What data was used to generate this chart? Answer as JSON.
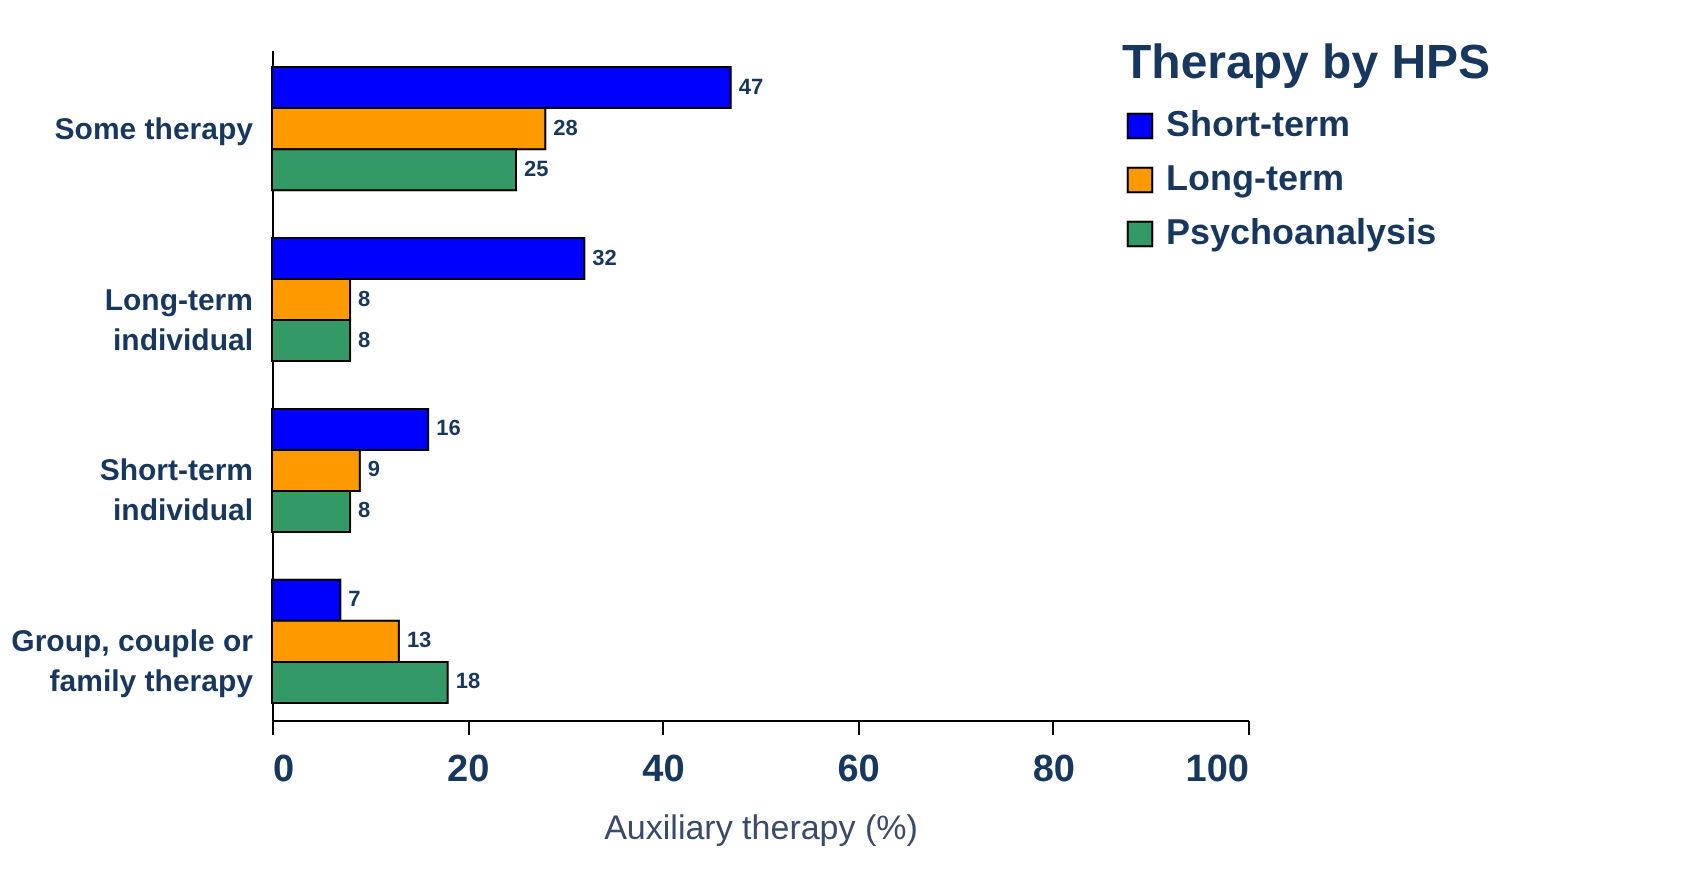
{
  "chart_data": {
    "type": "bar",
    "orientation": "horizontal",
    "categories": [
      "Some therapy",
      "Long-term\nindividual",
      "Short-term\nindividual",
      "Group, couple or\nfamily therapy"
    ],
    "series": [
      {
        "name": "Short-term",
        "color": "#0000ff",
        "values": [
          47,
          32,
          16,
          7
        ]
      },
      {
        "name": "Long-term",
        "color": "#ff9900",
        "values": [
          28,
          8,
          9,
          13
        ]
      },
      {
        "name": "Psychoanalysis",
        "color": "#339966",
        "values": [
          25,
          8,
          8,
          18
        ]
      }
    ],
    "xlim": [
      0,
      100
    ],
    "xticks": [
      0,
      20,
      40,
      60,
      80,
      100
    ],
    "xlabel": "Auxiliary therapy (%)",
    "legend_title": "Therapy by HPS",
    "legend": "top right",
    "data_labels": true
  }
}
